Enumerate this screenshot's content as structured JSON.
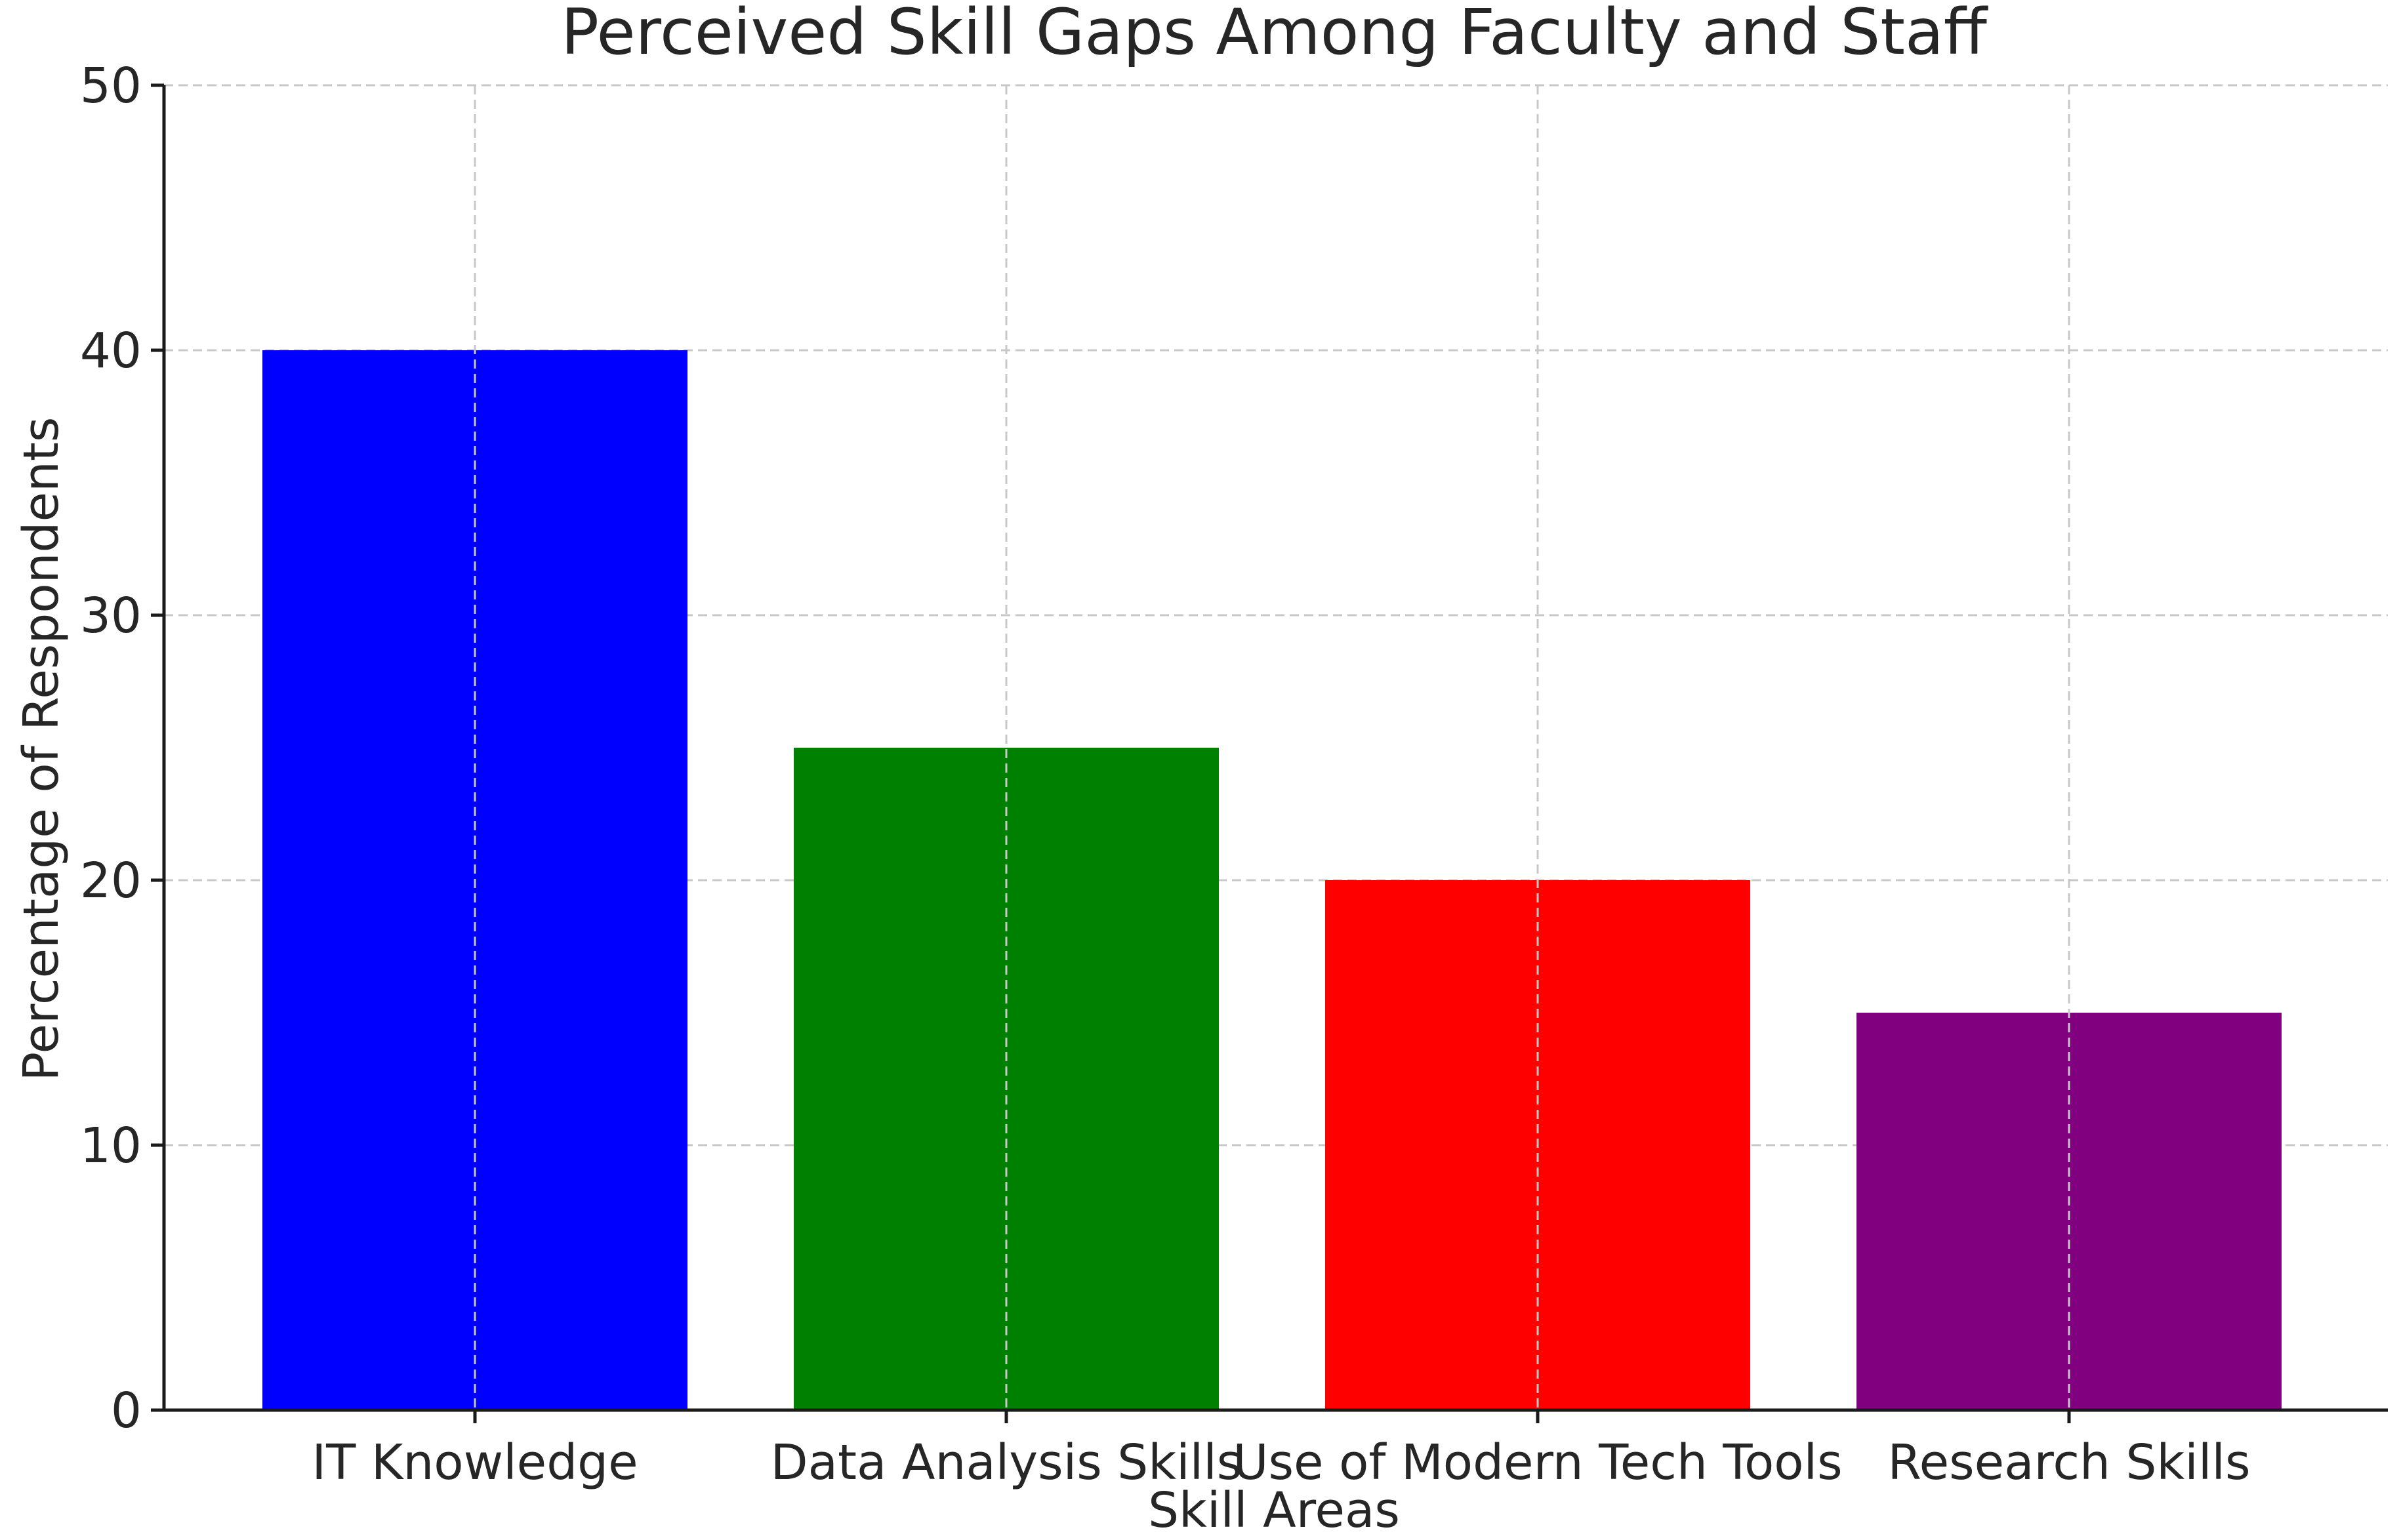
{
  "chart_data": {
    "type": "bar",
    "title": "Perceived Skill Gaps Among Faculty and Staff",
    "xlabel": "Skill Areas",
    "ylabel": "Percentage of Respondents",
    "categories": [
      "IT Knowledge",
      "Data Analysis Skills",
      "Use of Modern Tech Tools",
      "Research Skills"
    ],
    "values": [
      40,
      25,
      20,
      15
    ],
    "colors": [
      "#0000ff",
      "#008000",
      "#ff0000",
      "#800080"
    ],
    "ylim": [
      0,
      50
    ],
    "yticks": [
      "0",
      "10",
      "20",
      "30",
      "40",
      "50"
    ],
    "grid": true
  }
}
